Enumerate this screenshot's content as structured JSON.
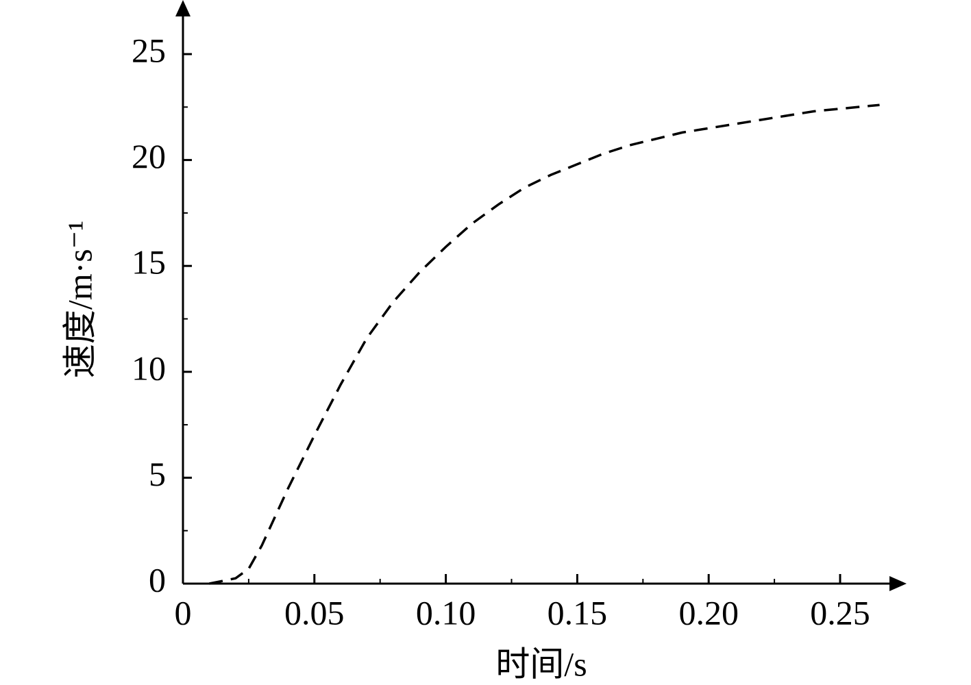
{
  "chart_data": {
    "type": "line",
    "xlabel": "时间/s",
    "ylabel": "速度/m·s⁻¹",
    "x": [
      0.01,
      0.02,
      0.025,
      0.03,
      0.04,
      0.05,
      0.06,
      0.07,
      0.08,
      0.09,
      0.1,
      0.11,
      0.12,
      0.13,
      0.14,
      0.15,
      0.16,
      0.17,
      0.18,
      0.19,
      0.2,
      0.22,
      0.24,
      0.265
    ],
    "values": [
      0,
      0.25,
      0.7,
      1.8,
      4.5,
      7.0,
      9.4,
      11.6,
      13.3,
      14.7,
      15.9,
      17.0,
      17.9,
      18.7,
      19.3,
      19.8,
      20.3,
      20.7,
      21.0,
      21.3,
      21.5,
      21.9,
      22.3,
      22.6
    ],
    "color": "#000000",
    "dashed": true,
    "xlim": [
      0,
      0.2745
    ],
    "ylim": [
      0,
      27.5
    ],
    "xticks": [
      0,
      0.05,
      {
        "value": 0.1,
        "label": "0.10"
      },
      0.15,
      {
        "value": 0.2,
        "label": "0.20"
      },
      0.25
    ],
    "yticks": [
      0,
      5,
      10,
      15,
      20,
      25
    ],
    "xminorticks": [
      0.025,
      0.075,
      0.125,
      0.175,
      0.225
    ],
    "yminorticks": [
      2.5,
      7.5,
      12.5,
      17.5,
      22.5
    ]
  }
}
